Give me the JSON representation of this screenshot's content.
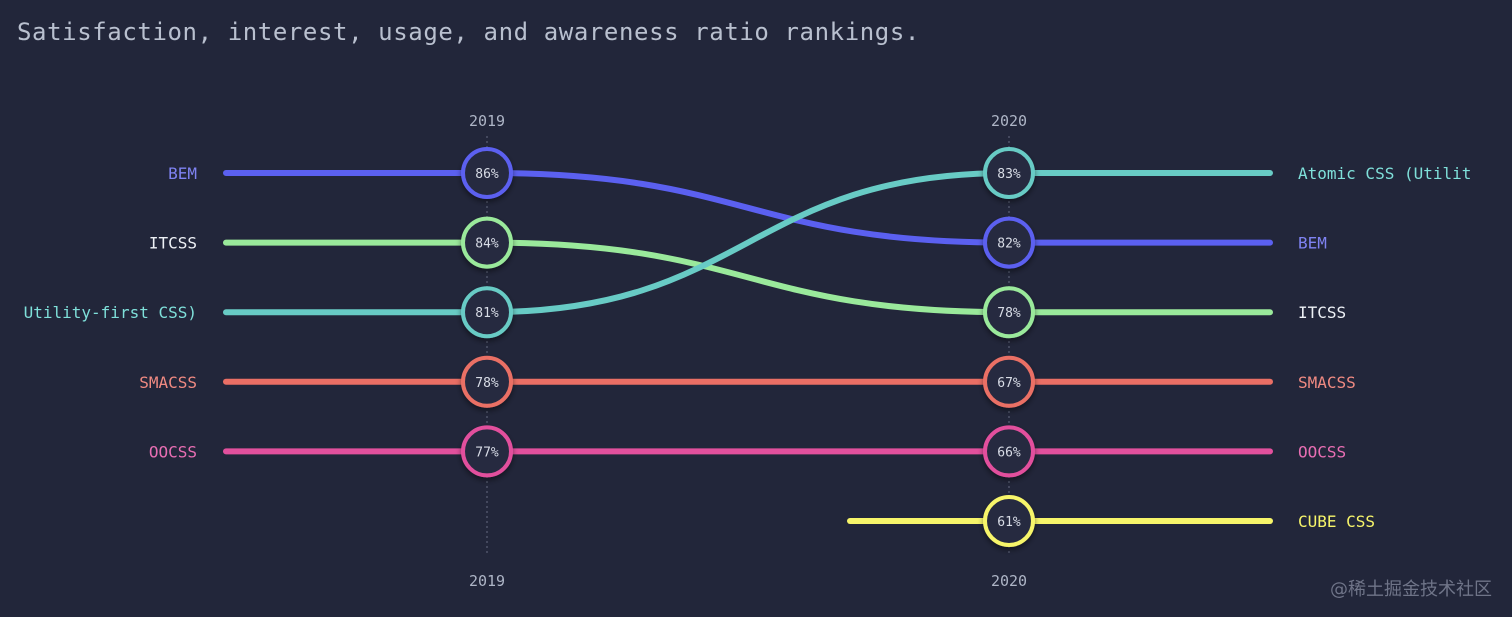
{
  "title": "Satisfaction, interest, usage, and awareness ratio rankings.",
  "watermark": "@稀土掘金技术社区",
  "chart_data": {
    "type": "line",
    "subtype": "bump",
    "title": "Satisfaction, interest, usage, and awareness ratio rankings.",
    "x": [
      "2019",
      "2020"
    ],
    "ranks": 6,
    "series": [
      {
        "name": "BEM",
        "color": "#5b60f0",
        "label_color": "#7f83f2",
        "values": [
          86,
          82
        ],
        "ranks": [
          1,
          2
        ]
      },
      {
        "name": "ITCSS",
        "color": "#9ae99b",
        "label_color": "#eef1f6",
        "values": [
          84,
          78
        ],
        "ranks": [
          2,
          3
        ]
      },
      {
        "name": "Atomic CSS (Utility-first CSS)",
        "left_label": "Utility-first CSS)",
        "right_label": "Atomic CSS (Utilit",
        "color": "#68cbc5",
        "label_color": "#7fe0da",
        "values": [
          81,
          83
        ],
        "ranks": [
          3,
          1
        ]
      },
      {
        "name": "SMACSS",
        "color": "#ea6f65",
        "label_color": "#f08a82",
        "values": [
          78,
          67
        ],
        "ranks": [
          4,
          4
        ]
      },
      {
        "name": "OOCSS",
        "color": "#e2509d",
        "label_color": "#e86eb3",
        "values": [
          77,
          66
        ],
        "ranks": [
          5,
          5
        ]
      },
      {
        "name": "CUBE CSS",
        "color": "#f7f56a",
        "label_color": "#f7f56a",
        "values": [
          null,
          61
        ],
        "ranks": [
          null,
          6
        ]
      }
    ]
  }
}
